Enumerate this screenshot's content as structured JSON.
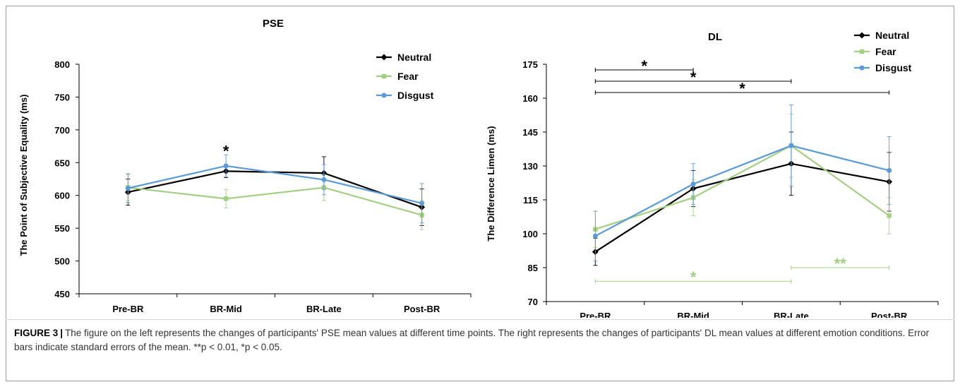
{
  "chart_data": [
    {
      "type": "line",
      "title": "PSE",
      "ylabel": "The Point of Subjective Equality (ms)",
      "xlabel": "",
      "categories": [
        "Pre-BR",
        "BR-Mid",
        "BR-Late",
        "Post-BR"
      ],
      "ylim": [
        450,
        800
      ],
      "yticks": [
        450,
        500,
        550,
        600,
        650,
        700,
        750,
        800
      ],
      "legend_position": "top-right",
      "grid": false,
      "series": [
        {
          "name": "Neutral",
          "color": "#000000",
          "marker": "diamond",
          "values": [
            605,
            637,
            634,
            582
          ],
          "errors": [
            20,
            10,
            25,
            28
          ]
        },
        {
          "name": "Fear",
          "color": "#a3cf82",
          "marker": "square",
          "values": [
            612,
            595,
            612,
            570
          ],
          "errors": [
            20,
            14,
            20,
            22
          ]
        },
        {
          "name": "Disgust",
          "color": "#5b9bd5",
          "marker": "circle",
          "values": [
            611,
            645,
            624,
            588
          ],
          "errors": [
            22,
            17,
            23,
            30
          ]
        }
      ],
      "annotations": [
        {
          "text": "*",
          "x": "BR-Mid",
          "y": 668,
          "color": "#000000"
        }
      ]
    },
    {
      "type": "line",
      "title": "DL",
      "ylabel": "The Difference Limen (ms)",
      "xlabel": "",
      "categories": [
        "Pre-BR",
        "BR-Mid",
        "BR-Late",
        "Post-BR"
      ],
      "ylim": [
        70,
        175
      ],
      "yticks": [
        70,
        85,
        100,
        115,
        130,
        145,
        160,
        175
      ],
      "legend_position": "top-right",
      "grid": false,
      "series": [
        {
          "name": "Neutral",
          "color": "#000000",
          "marker": "diamond",
          "values": [
            92,
            120,
            131,
            123
          ],
          "errors": [
            6,
            8,
            14,
            13
          ]
        },
        {
          "name": "Fear",
          "color": "#a3cf82",
          "marker": "square",
          "values": [
            102,
            116,
            139,
            108
          ],
          "errors": [
            8,
            8,
            14,
            8
          ]
        },
        {
          "name": "Disgust",
          "color": "#5b9bd5",
          "marker": "circle",
          "values": [
            99,
            122,
            139,
            128
          ],
          "errors": [
            11,
            9,
            18,
            15
          ]
        }
      ],
      "significance": [
        {
          "from": "Pre-BR",
          "to": "BR-Mid",
          "y": 172.5,
          "text": "*",
          "color": "#000000"
        },
        {
          "from": "Pre-BR",
          "to": "BR-Late",
          "y": 167.5,
          "text": "*",
          "color": "#000000"
        },
        {
          "from": "Pre-BR",
          "to": "Post-BR",
          "y": 162.5,
          "text": "*",
          "color": "#000000"
        },
        {
          "from": "Pre-BR",
          "to": "BR-Late",
          "y": 79,
          "text": "*",
          "color": "#a3cf82"
        },
        {
          "from": "BR-Late",
          "to": "Post-BR",
          "y": 85,
          "text": "**",
          "color": "#a3cf82"
        }
      ]
    }
  ],
  "caption": {
    "label": "FIGURE 3",
    "separator": "|",
    "text": "The figure on the left represents the changes of participants' PSE mean values at different time points. The right represents the changes of participants' DL mean values at different emotion conditions. Error bars indicate standard errors of the mean. **p < 0.01, *p < 0.05."
  }
}
